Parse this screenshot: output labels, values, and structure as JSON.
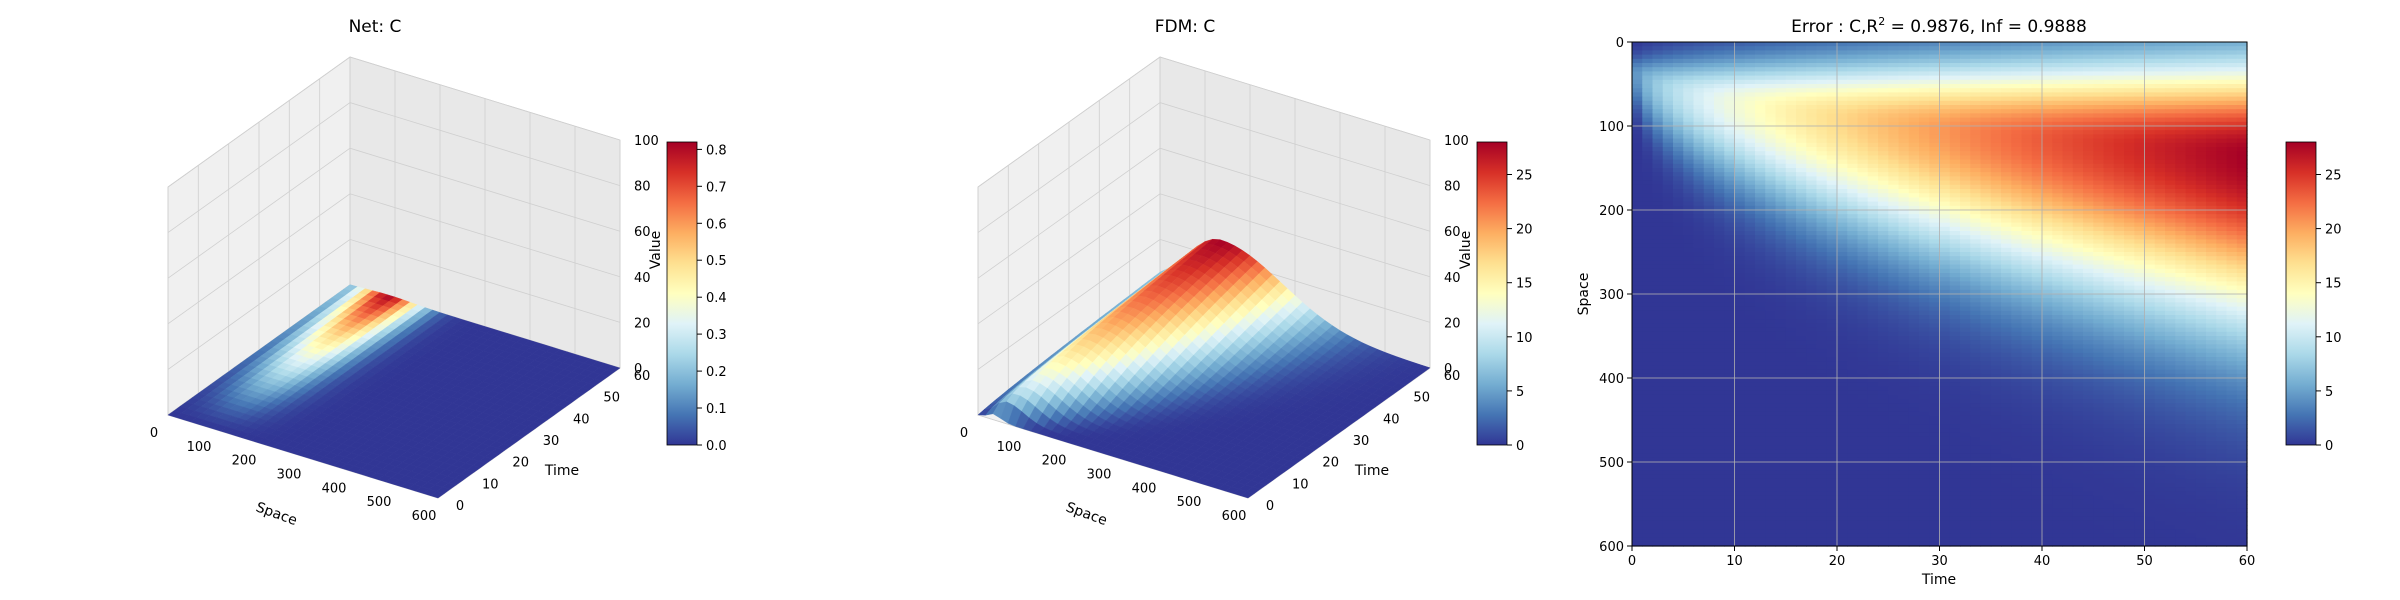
{
  "chart_data": [
    {
      "type": "surface3d",
      "title": "Net: C",
      "xlabel": "Space",
      "ylabel": "Time",
      "zlabel": "Value",
      "x_ticks": [
        0,
        100,
        200,
        300,
        400,
        500,
        600
      ],
      "y_ticks": [
        0,
        10,
        20,
        30,
        40,
        50,
        60
      ],
      "z_ticks": [
        0,
        20,
        40,
        60,
        80,
        100
      ],
      "xlim": [
        0,
        600
      ],
      "ylim": [
        0,
        60
      ],
      "zlim": [
        0,
        100
      ],
      "colorbar": {
        "ticks": [
          "0.0",
          "0.1",
          "0.2",
          "0.3",
          "0.4",
          "0.5",
          "0.6",
          "0.7",
          "0.8"
        ],
        "min": 0,
        "max": 0.82
      },
      "colormap": "RdYlBu_r",
      "value_max": 0.82,
      "grid": true
    },
    {
      "type": "surface3d",
      "title": "FDM: C",
      "xlabel": "Space",
      "ylabel": "Time",
      "zlabel": "Value",
      "x_ticks": [
        0,
        100,
        200,
        300,
        400,
        500,
        600
      ],
      "y_ticks": [
        0,
        10,
        20,
        30,
        40,
        50,
        60
      ],
      "z_ticks": [
        0,
        20,
        40,
        60,
        80,
        100
      ],
      "xlim": [
        0,
        600
      ],
      "ylim": [
        0,
        60
      ],
      "zlim": [
        0,
        100
      ],
      "colorbar": {
        "ticks": [
          "0",
          "5",
          "10",
          "15",
          "20",
          "25"
        ],
        "min": 0,
        "max": 28
      },
      "colormap": "RdYlBu_r",
      "value_max": 28,
      "grid": true
    },
    {
      "type": "heatmap",
      "title_prefix": "Error : C,R",
      "title_sup": "2",
      "title_suffix": " = 0.9876, Inf = 0.9888",
      "xlabel": "Time",
      "ylabel": "Space",
      "x_ticks": [
        0,
        10,
        20,
        30,
        40,
        50,
        60
      ],
      "y_ticks": [
        0,
        100,
        200,
        300,
        400,
        500,
        600
      ],
      "xlim": [
        0,
        60
      ],
      "ylim": [
        600,
        0
      ],
      "colorbar": {
        "ticks": [
          "0",
          "5",
          "10",
          "15",
          "20",
          "25"
        ],
        "min": 0,
        "max": 28
      },
      "colormap": "RdYlBu_r",
      "grid": true
    }
  ]
}
